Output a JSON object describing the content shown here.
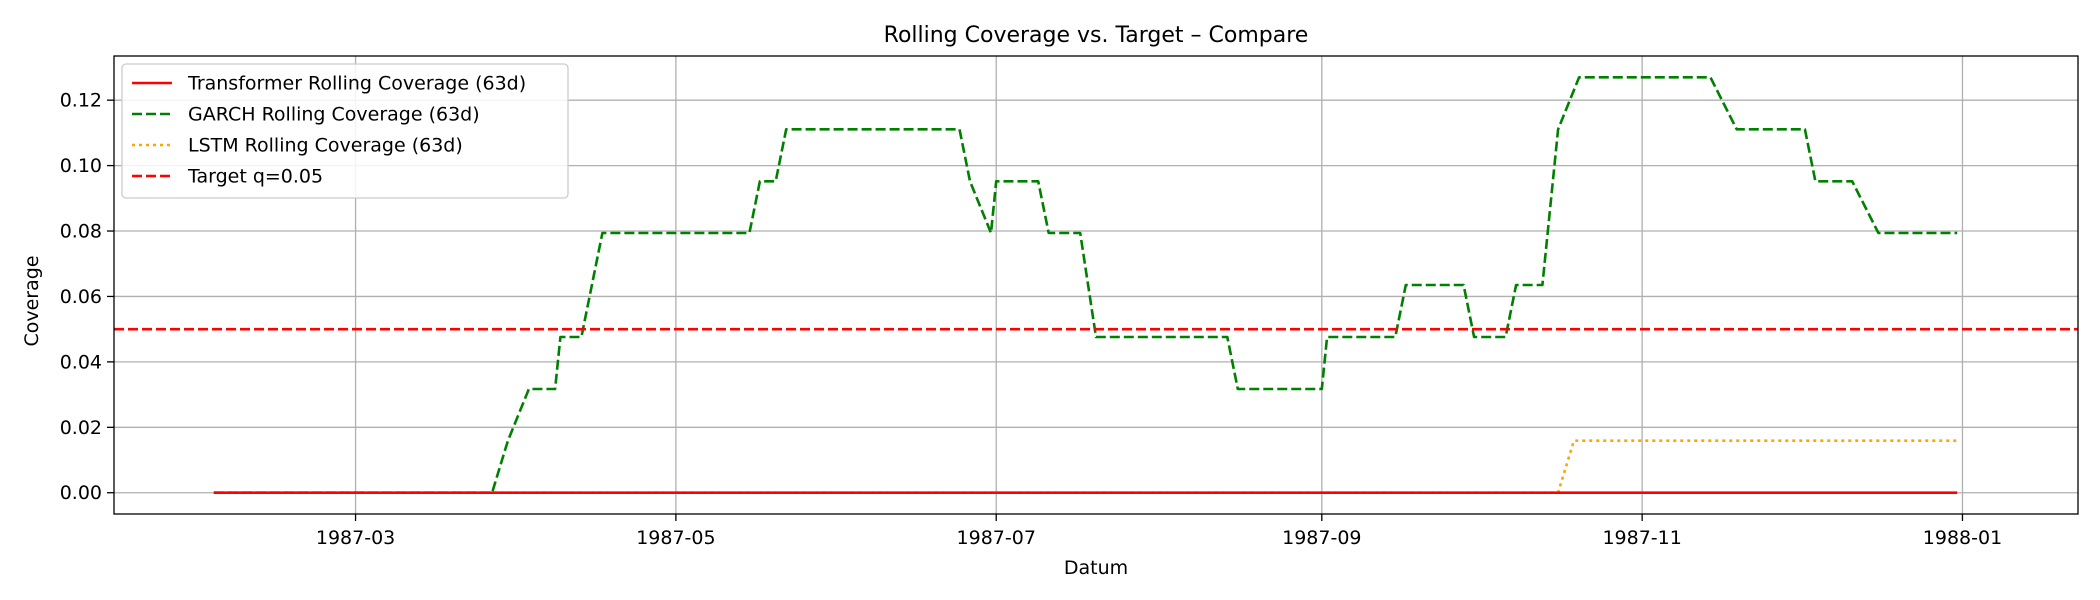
{
  "chart_data": {
    "type": "line",
    "title": "Rolling Coverage vs. Target – Compare",
    "xlabel": "Datum",
    "ylabel": "Coverage",
    "xlim": [
      "1987-01-14",
      "1988-01-23"
    ],
    "ylim": [
      -0.0065,
      0.1335
    ],
    "grid": true,
    "legend_position": "top-left",
    "x_ticks": [
      {
        "date": "1987-03-01",
        "label": "1987-03"
      },
      {
        "date": "1987-05-01",
        "label": "1987-05"
      },
      {
        "date": "1987-07-01",
        "label": "1987-07"
      },
      {
        "date": "1987-09-01",
        "label": "1987-09"
      },
      {
        "date": "1987-11-01",
        "label": "1987-11"
      },
      {
        "date": "1988-01-01",
        "label": "1988-01"
      }
    ],
    "y_ticks": [
      {
        "value": 0.0,
        "label": "0.00"
      },
      {
        "value": 0.02,
        "label": "0.02"
      },
      {
        "value": 0.04,
        "label": "0.04"
      },
      {
        "value": 0.06,
        "label": "0.06"
      },
      {
        "value": 0.08,
        "label": "0.08"
      },
      {
        "value": 0.1,
        "label": "0.10"
      },
      {
        "value": 0.12,
        "label": "0.12"
      }
    ],
    "series": [
      {
        "name": "Transformer Rolling Coverage (63d)",
        "color": "#ff0000",
        "style": "solid",
        "points": [
          [
            "1987-02-02",
            0.0
          ],
          [
            "1987-12-31",
            0.0
          ]
        ]
      },
      {
        "name": "GARCH Rolling Coverage (63d)",
        "color": "#008000",
        "style": "dashed",
        "points": [
          [
            "1987-02-02",
            0.0
          ],
          [
            "1987-03-27",
            0.0
          ],
          [
            "1987-03-30",
            0.0159
          ],
          [
            "1987-04-03",
            0.0317
          ],
          [
            "1987-04-08",
            0.0317
          ],
          [
            "1987-04-09",
            0.0476
          ],
          [
            "1987-04-13",
            0.0476
          ],
          [
            "1987-04-15",
            0.0635
          ],
          [
            "1987-04-17",
            0.0794
          ],
          [
            "1987-05-15",
            0.0794
          ],
          [
            "1987-05-17",
            0.0952
          ],
          [
            "1987-05-20",
            0.0952
          ],
          [
            "1987-05-22",
            0.1111
          ],
          [
            "1987-06-24",
            0.1111
          ],
          [
            "1987-06-26",
            0.0952
          ],
          [
            "1987-06-30",
            0.0794
          ],
          [
            "1987-07-01",
            0.0952
          ],
          [
            "1987-07-09",
            0.0952
          ],
          [
            "1987-07-11",
            0.0794
          ],
          [
            "1987-07-17",
            0.0794
          ],
          [
            "1987-07-20",
            0.0476
          ],
          [
            "1987-08-14",
            0.0476
          ],
          [
            "1987-08-16",
            0.0317
          ],
          [
            "1987-09-01",
            0.0317
          ],
          [
            "1987-09-02",
            0.0476
          ],
          [
            "1987-09-15",
            0.0476
          ],
          [
            "1987-09-17",
            0.0635
          ],
          [
            "1987-09-28",
            0.0635
          ],
          [
            "1987-09-30",
            0.0476
          ],
          [
            "1987-10-06",
            0.0476
          ],
          [
            "1987-10-08",
            0.0635
          ],
          [
            "1987-10-13",
            0.0635
          ],
          [
            "1987-10-16",
            0.1111
          ],
          [
            "1987-10-20",
            0.127
          ],
          [
            "1987-11-14",
            0.127
          ],
          [
            "1987-11-19",
            0.1111
          ],
          [
            "1987-12-02",
            0.1111
          ],
          [
            "1987-12-04",
            0.0952
          ],
          [
            "1987-12-11",
            0.0952
          ],
          [
            "1987-12-16",
            0.0794
          ],
          [
            "1987-12-31",
            0.0794
          ]
        ]
      },
      {
        "name": "LSTM Rolling Coverage (63d)",
        "color": "#ffa500",
        "style": "dotted",
        "points": [
          [
            "1987-02-02",
            0.0
          ],
          [
            "1987-10-16",
            0.0
          ],
          [
            "1987-10-19",
            0.0159
          ],
          [
            "1987-12-31",
            0.0159
          ]
        ]
      },
      {
        "name": "Target q=0.05",
        "color": "#ff0000",
        "style": "dashed",
        "hline": 0.05
      }
    ]
  }
}
